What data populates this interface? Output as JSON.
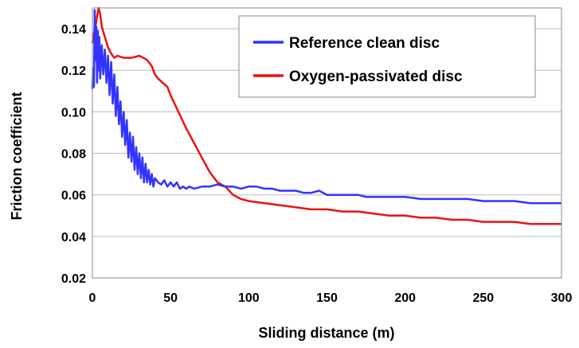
{
  "chart_data": {
    "type": "line",
    "title": "",
    "xlabel": "Sliding distance (m)",
    "ylabel": "Friction coefficient",
    "xlim": [
      0,
      300
    ],
    "ylim": [
      0.02,
      0.15
    ],
    "xticks": [
      0,
      50,
      100,
      150,
      200,
      250,
      300
    ],
    "yticks": [
      0.02,
      0.04,
      0.06,
      0.08,
      0.1,
      0.12,
      0.14
    ],
    "xtick_labels": [
      "0",
      "50",
      "100",
      "150",
      "200",
      "250",
      "300"
    ],
    "ytick_labels": [
      "0.02",
      "0.04",
      "0.06",
      "0.08",
      "0.10",
      "0.12",
      "0.14"
    ],
    "grid": "horizontal",
    "legend": "top-right",
    "series": [
      {
        "name": "Reference clean disc",
        "color": "#3333ff",
        "x": [
          0,
          0.5,
          1,
          1.5,
          2,
          2.5,
          3,
          3.5,
          4,
          4.5,
          5,
          6,
          7,
          8,
          9,
          10,
          11,
          12,
          13,
          14,
          15,
          16,
          17,
          18,
          19,
          20,
          21,
          22,
          23,
          24,
          25,
          26,
          27,
          28,
          29,
          30,
          31,
          32,
          33,
          34,
          35,
          36,
          37,
          38,
          39,
          40,
          42,
          44,
          46,
          48,
          50,
          52,
          54,
          56,
          58,
          60,
          62,
          65,
          70,
          75,
          80,
          85,
          90,
          95,
          100,
          105,
          110,
          115,
          120,
          125,
          130,
          135,
          140,
          145,
          150,
          155,
          160,
          165,
          170,
          175,
          180,
          190,
          200,
          210,
          220,
          230,
          240,
          250,
          260,
          270,
          280,
          290,
          300
        ],
        "y": [
          0.111,
          0.121,
          0.112,
          0.149,
          0.125,
          0.141,
          0.114,
          0.139,
          0.12,
          0.136,
          0.116,
          0.132,
          0.118,
          0.13,
          0.114,
          0.127,
          0.108,
          0.124,
          0.104,
          0.118,
          0.098,
          0.112,
          0.094,
          0.105,
          0.088,
          0.1,
          0.084,
          0.096,
          0.078,
          0.09,
          0.076,
          0.088,
          0.072,
          0.083,
          0.07,
          0.08,
          0.068,
          0.078,
          0.066,
          0.075,
          0.066,
          0.072,
          0.065,
          0.07,
          0.064,
          0.068,
          0.066,
          0.065,
          0.067,
          0.064,
          0.066,
          0.064,
          0.066,
          0.063,
          0.064,
          0.063,
          0.064,
          0.063,
          0.064,
          0.064,
          0.065,
          0.064,
          0.064,
          0.063,
          0.064,
          0.064,
          0.063,
          0.063,
          0.062,
          0.062,
          0.062,
          0.061,
          0.061,
          0.062,
          0.06,
          0.06,
          0.06,
          0.06,
          0.06,
          0.059,
          0.059,
          0.059,
          0.059,
          0.058,
          0.058,
          0.058,
          0.058,
          0.057,
          0.057,
          0.057,
          0.056,
          0.056,
          0.056
        ]
      },
      {
        "name": "Oxygen-passivated disc",
        "color": "#ee1111",
        "x": [
          0,
          1,
          2,
          3,
          4,
          5,
          6,
          8,
          10,
          12,
          14,
          16,
          20,
          25,
          30,
          35,
          38,
          40,
          42,
          45,
          48,
          50,
          55,
          60,
          65,
          70,
          75,
          80,
          85,
          90,
          95,
          100,
          110,
          120,
          130,
          140,
          150,
          160,
          170,
          180,
          190,
          200,
          210,
          220,
          230,
          240,
          250,
          260,
          270,
          280,
          290,
          300
        ],
        "y": [
          0.133,
          0.138,
          0.141,
          0.146,
          0.152,
          0.147,
          0.141,
          0.136,
          0.131,
          0.128,
          0.126,
          0.127,
          0.126,
          0.126,
          0.127,
          0.125,
          0.122,
          0.118,
          0.116,
          0.114,
          0.112,
          0.108,
          0.1,
          0.092,
          0.085,
          0.078,
          0.071,
          0.066,
          0.064,
          0.06,
          0.058,
          0.057,
          0.056,
          0.055,
          0.054,
          0.053,
          0.053,
          0.052,
          0.052,
          0.051,
          0.05,
          0.05,
          0.049,
          0.049,
          0.048,
          0.048,
          0.047,
          0.047,
          0.047,
          0.046,
          0.046,
          0.046
        ]
      }
    ]
  }
}
